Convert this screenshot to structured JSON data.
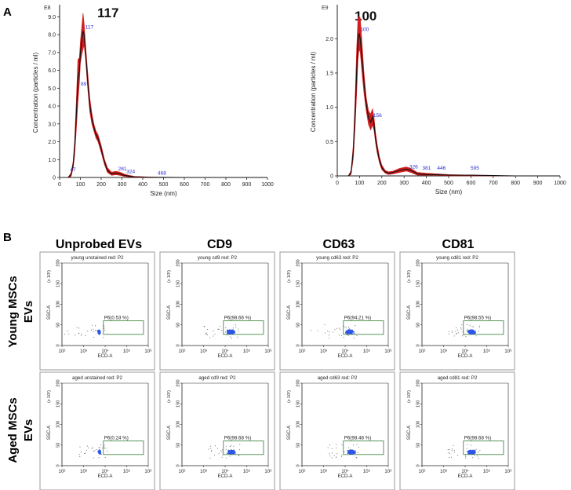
{
  "figure": {
    "panel_a_label": "A",
    "panel_b_label": "B",
    "column_headers": [
      "Unprobed EVs",
      "CD9",
      "CD63",
      "CD81"
    ],
    "row_labels": [
      [
        "Young MSCs",
        "EVs"
      ],
      [
        "Aged MSCs",
        "EVs"
      ]
    ]
  },
  "chart_data": [
    {
      "type": "line",
      "panel": "A-left",
      "title": "117",
      "exponent_label": "E8",
      "xlabel": "Size (nm)",
      "ylabel": "Concentration (particles / ml)",
      "xlim": [
        0,
        1000
      ],
      "ylim": [
        0,
        9.5
      ],
      "xticks": [
        0,
        100,
        200,
        300,
        400,
        500,
        600,
        700,
        800,
        900,
        1000
      ],
      "yticks": [
        "0",
        "1.0",
        "2.0",
        "3.0",
        "4.0",
        "5.0",
        "6.0",
        "7.0",
        "8.0",
        "9.0"
      ],
      "x": [
        40,
        55,
        65,
        72,
        80,
        88,
        95,
        100,
        107,
        113,
        118,
        125,
        135,
        145,
        155,
        165,
        175,
        185,
        200,
        215,
        230,
        250,
        270,
        290,
        310,
        330,
        360,
        400,
        450,
        500,
        600,
        800,
        1000
      ],
      "y": [
        0,
        0.15,
        0.7,
        1.6,
        3.4,
        5.4,
        6.0,
        7.0,
        7.7,
        8.2,
        8.0,
        7.0,
        5.4,
        4.1,
        3.3,
        2.8,
        2.4,
        2.2,
        1.6,
        0.9,
        0.4,
        0.2,
        0.25,
        0.2,
        0.12,
        0.08,
        0.03,
        0.02,
        0.01,
        0.01,
        0.0,
        0.0,
        0.0
      ],
      "band_upper": [
        0,
        0.25,
        0.9,
        2.0,
        4.2,
        6.6,
        6.7,
        7.6,
        8.5,
        9.2,
        8.6,
        7.4,
        5.9,
        4.5,
        3.6,
        3.0,
        2.6,
        2.4,
        1.8,
        1.05,
        0.55,
        0.3,
        0.35,
        0.3,
        0.2,
        0.13,
        0.06,
        0.04,
        0.02,
        0.01,
        0.0,
        0.0,
        0.0
      ],
      "band_lower": [
        0,
        0.05,
        0.5,
        1.2,
        2.6,
        4.2,
        5.3,
        6.4,
        6.9,
        7.2,
        7.4,
        6.6,
        5.0,
        3.7,
        3.0,
        2.6,
        2.2,
        2.0,
        1.4,
        0.75,
        0.28,
        0.12,
        0.15,
        0.12,
        0.06,
        0.04,
        0.01,
        0.0,
        0.0,
        0.0,
        0.0,
        0.0,
        0.0
      ],
      "peak_labels": [
        {
          "text": "47",
          "x": 47,
          "y": 0.3
        },
        {
          "text": "89",
          "x": 98,
          "y": 5.1
        },
        {
          "text": "117",
          "x": 120,
          "y": 8.3
        },
        {
          "text": "281",
          "x": 278,
          "y": 0.35
        },
        {
          "text": "324",
          "x": 318,
          "y": 0.2
        },
        {
          "text": "468",
          "x": 468,
          "y": 0.12
        }
      ]
    },
    {
      "type": "line",
      "panel": "A-right",
      "title": "100",
      "exponent_label": "E9",
      "xlabel": "Size (nm)",
      "ylabel": "Concentration (particles / ml)",
      "xlim": [
        0,
        1000
      ],
      "ylim": [
        0,
        2.45
      ],
      "xticks": [
        0,
        100,
        200,
        300,
        400,
        500,
        600,
        700,
        800,
        900,
        1000
      ],
      "yticks": [
        "0",
        "0.5",
        "1.0",
        "1.5",
        "2.0"
      ],
      "x": [
        50,
        62,
        72,
        80,
        87,
        93,
        98,
        103,
        110,
        120,
        130,
        140,
        150,
        158,
        165,
        172,
        180,
        190,
        200,
        215,
        230,
        250,
        280,
        310,
        330,
        360,
        400,
        450,
        500,
        600,
        800,
        1000
      ],
      "y": [
        0,
        0.05,
        0.35,
        0.9,
        1.5,
        1.95,
        2.08,
        2.0,
        1.75,
        1.35,
        1.05,
        0.85,
        0.78,
        0.86,
        0.75,
        0.55,
        0.38,
        0.22,
        0.12,
        0.06,
        0.04,
        0.05,
        0.08,
        0.1,
        0.08,
        0.03,
        0.02,
        0.02,
        0.01,
        0.01,
        0.0,
        0.0
      ],
      "band_upper": [
        0,
        0.08,
        0.45,
        1.1,
        1.85,
        2.3,
        2.33,
        2.3,
        2.0,
        1.5,
        1.15,
        0.95,
        0.9,
        0.98,
        0.85,
        0.63,
        0.45,
        0.27,
        0.16,
        0.08,
        0.06,
        0.07,
        0.11,
        0.13,
        0.11,
        0.05,
        0.04,
        0.03,
        0.02,
        0.01,
        0.0,
        0.0
      ],
      "band_lower": [
        0,
        0.02,
        0.25,
        0.7,
        1.2,
        1.7,
        1.85,
        1.8,
        1.55,
        1.2,
        0.95,
        0.75,
        0.67,
        0.74,
        0.66,
        0.48,
        0.32,
        0.18,
        0.09,
        0.04,
        0.02,
        0.03,
        0.05,
        0.07,
        0.05,
        0.01,
        0.01,
        0.01,
        0.0,
        0.0,
        0.0,
        0.0
      ],
      "peak_labels": [
        {
          "text": "100",
          "x": 100,
          "y": 2.1
        },
        {
          "text": "156",
          "x": 158,
          "y": 0.85
        },
        {
          "text": "326",
          "x": 320,
          "y": 0.1
        },
        {
          "text": "381",
          "x": 378,
          "y": 0.08
        },
        {
          "text": "446",
          "x": 445,
          "y": 0.08
        },
        {
          "text": "595",
          "x": 595,
          "y": 0.08
        }
      ]
    },
    {
      "type": "scatter",
      "panel": "B-flow-cytometry",
      "xlabel": "ECD-A",
      "ylabel": "SSC-A",
      "y_scale_label": "(x 10³)",
      "xlim_log10": [
        2,
        6
      ],
      "ylim": [
        0,
        200
      ],
      "xticks": [
        "10²",
        "10³",
        "10⁴",
        "10⁵",
        "10⁶"
      ],
      "yticks": [
        "0",
        "50",
        "100",
        "150",
        "200"
      ],
      "gate": {
        "name": "P6",
        "x_log10": [
          3.92,
          5.78
        ],
        "y": [
          27,
          60
        ]
      },
      "plots": [
        {
          "title": "young unstained red: P2",
          "gate_label": "P6(0.53 %)",
          "cluster_log10": 3.72,
          "scatter_xmin": 2.0
        },
        {
          "title": "young cd9 red: P2",
          "gate_label": "P6(98.66 %)",
          "cluster_log10": 4.25,
          "scatter_xmin": 3.0
        },
        {
          "title": "young cd63 red: P2",
          "gate_label": "P6(94.21 %)",
          "cluster_log10": 4.2,
          "scatter_xmin": 2.3
        },
        {
          "title": "young cd81 red: P2",
          "gate_label": "P6(98.55 %)",
          "cluster_log10": 4.3,
          "scatter_xmin": 3.2
        },
        {
          "title": "aged unstained red: P2",
          "gate_label": "P6(0.24 %)",
          "cluster_log10": 3.75,
          "scatter_xmin": 2.8
        },
        {
          "title": "aged cd9 red: P2",
          "gate_label": "P6(98.68 %)",
          "cluster_log10": 4.3,
          "scatter_xmin": 3.2
        },
        {
          "title": "aged cd63 red: P2",
          "gate_label": "P6(98.48 %)",
          "cluster_log10": 4.3,
          "scatter_xmin": 3.2
        },
        {
          "title": "aged cd81 red: P2",
          "gate_label": "P6(98.68 %)",
          "cluster_log10": 4.3,
          "scatter_xmin": 3.2
        }
      ]
    }
  ],
  "colors": {
    "curve": "#111111",
    "band": "#d21e1e",
    "peak_label": "#2a2ad0",
    "dots": "#2f56e8",
    "gate": "#2e7d32",
    "axis": "#222222",
    "frame": "#9a9a9a"
  }
}
